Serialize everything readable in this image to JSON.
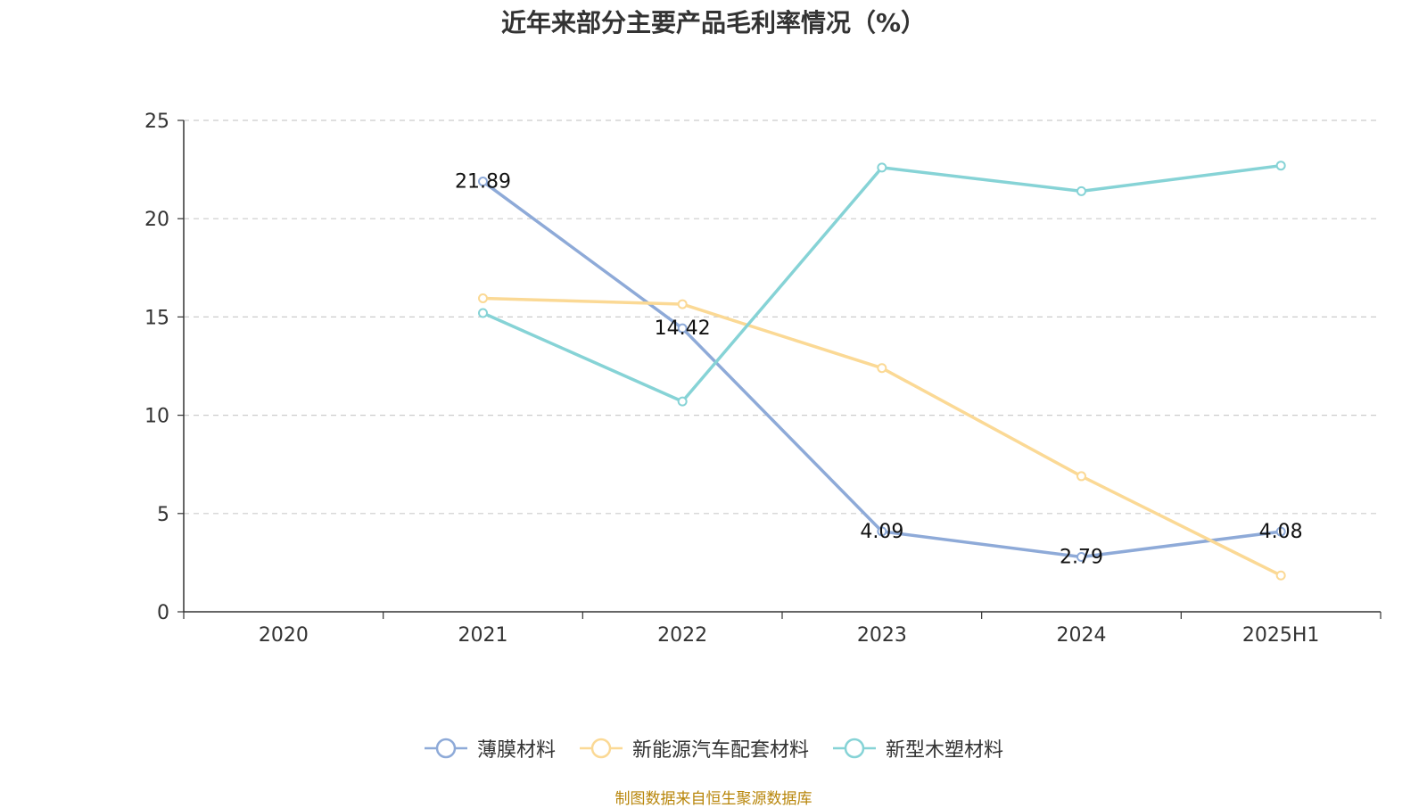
{
  "chart_data": {
    "type": "line",
    "title": "近年来部分主要产品毛利率情况（%）",
    "categories": [
      "2020",
      "2021",
      "2022",
      "2023",
      "2024",
      "2025H1"
    ],
    "ylim": [
      0,
      25
    ],
    "yticks": [
      0,
      5,
      10,
      15,
      20,
      25
    ],
    "grid": true,
    "legend_position": "bottom",
    "series": [
      {
        "name": "薄膜材料",
        "color": "#8eaad8",
        "values": [
          null,
          21.89,
          14.42,
          4.09,
          2.79,
          4.08
        ],
        "labels": [
          null,
          "21.89",
          "14.42",
          "4.09",
          "2.79",
          "4.08"
        ]
      },
      {
        "name": "新能源汽车配套材料",
        "color": "#fbd995",
        "values": [
          null,
          15.95,
          15.65,
          12.4,
          6.9,
          1.85
        ],
        "labels": [
          null,
          null,
          null,
          null,
          null,
          null
        ]
      },
      {
        "name": "新型木塑材料",
        "color": "#86d3d6",
        "values": [
          null,
          15.2,
          10.7,
          22.6,
          21.4,
          22.7
        ],
        "labels": [
          null,
          null,
          null,
          null,
          null,
          null
        ]
      }
    ]
  },
  "footer": {
    "source": "制图数据来自恒生聚源数据库"
  }
}
